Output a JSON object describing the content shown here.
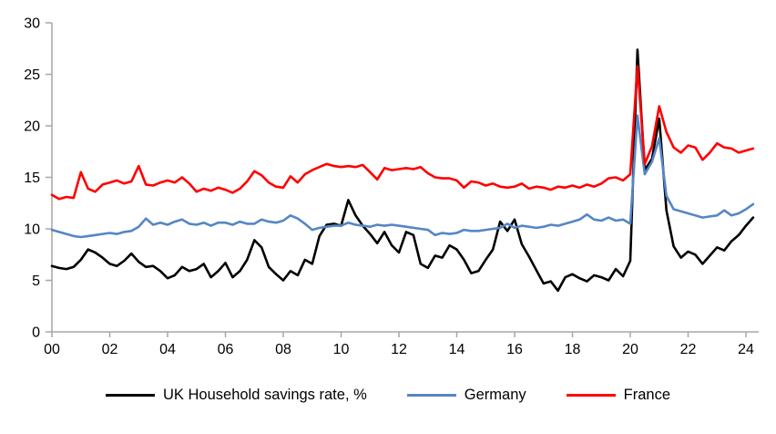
{
  "chart_data": {
    "type": "line",
    "title": "",
    "xlabel": "",
    "ylabel": "",
    "x_start_year": 2000,
    "points_per_year": 4,
    "x_frequency": "quarterly",
    "x_tick_labels": [
      "00",
      "02",
      "04",
      "06",
      "08",
      "10",
      "12",
      "14",
      "16",
      "18",
      "20",
      "22",
      "24"
    ],
    "x_tick_years": [
      2000,
      2002,
      2004,
      2006,
      2008,
      2010,
      2012,
      2014,
      2016,
      2018,
      2020,
      2022,
      2024
    ],
    "y_ticks": [
      0,
      5,
      10,
      15,
      20,
      25,
      30
    ],
    "ylim": [
      0,
      30
    ],
    "grid": false,
    "legend_position": "bottom",
    "axis_color": "#a6a6a6",
    "text_color": "#000000",
    "series": [
      {
        "name": "UK Household savings rate, %",
        "color": "#000000",
        "values": [
          6.4,
          6.2,
          6.1,
          6.3,
          7.0,
          8.0,
          7.7,
          7.2,
          6.6,
          6.4,
          6.9,
          7.6,
          6.8,
          6.3,
          6.4,
          5.9,
          5.2,
          5.5,
          6.3,
          5.9,
          6.1,
          6.6,
          5.3,
          5.9,
          6.7,
          5.3,
          5.9,
          7.0,
          8.9,
          8.2,
          6.3,
          5.6,
          5.0,
          5.9,
          5.5,
          7.0,
          6.6,
          9.3,
          10.4,
          10.5,
          10.3,
          12.8,
          11.3,
          10.3,
          9.5,
          8.6,
          9.7,
          8.4,
          7.7,
          9.7,
          9.4,
          6.6,
          6.2,
          7.4,
          7.2,
          8.4,
          8.0,
          7.0,
          5.7,
          5.9,
          7.0,
          8.0,
          10.7,
          9.8,
          10.9,
          8.5,
          7.3,
          6.0,
          4.7,
          4.9,
          4.0,
          5.3,
          5.6,
          5.2,
          4.9,
          5.5,
          5.3,
          5.0,
          6.1,
          5.4,
          6.9,
          27.4,
          15.7,
          16.8,
          20.7,
          11.8,
          8.3,
          7.2,
          7.8,
          7.5,
          6.6,
          7.4,
          8.2,
          7.9,
          8.8,
          9.4,
          10.3,
          11.1
        ]
      },
      {
        "name": "Germany",
        "color": "#5586c4",
        "values": [
          9.9,
          9.7,
          9.5,
          9.3,
          9.2,
          9.3,
          9.4,
          9.5,
          9.6,
          9.5,
          9.7,
          9.8,
          10.2,
          11.0,
          10.4,
          10.6,
          10.4,
          10.7,
          10.9,
          10.5,
          10.4,
          10.6,
          10.3,
          10.6,
          10.6,
          10.4,
          10.7,
          10.5,
          10.5,
          10.9,
          10.7,
          10.6,
          10.8,
          11.3,
          11.0,
          10.5,
          9.9,
          10.1,
          10.2,
          10.3,
          10.3,
          10.6,
          10.4,
          10.3,
          10.2,
          10.4,
          10.3,
          10.4,
          10.3,
          10.2,
          10.1,
          10.0,
          9.9,
          9.4,
          9.6,
          9.5,
          9.6,
          9.9,
          9.8,
          9.8,
          9.9,
          10.0,
          10.1,
          10.5,
          10.1,
          10.3,
          10.2,
          10.1,
          10.2,
          10.4,
          10.3,
          10.5,
          10.7,
          10.9,
          11.4,
          10.9,
          10.8,
          11.1,
          10.8,
          10.9,
          10.5,
          21.0,
          15.3,
          16.5,
          18.8,
          13.2,
          11.9,
          11.7,
          11.5,
          11.3,
          11.1,
          11.2,
          11.3,
          11.8,
          11.3,
          11.5,
          11.9,
          12.4
        ]
      },
      {
        "name": "France",
        "color": "#ff0000",
        "values": [
          13.3,
          12.9,
          13.1,
          13.0,
          15.5,
          13.9,
          13.6,
          14.3,
          14.5,
          14.7,
          14.4,
          14.6,
          16.1,
          14.3,
          14.2,
          14.5,
          14.7,
          14.5,
          15.0,
          14.4,
          13.6,
          13.9,
          13.7,
          14.0,
          13.8,
          13.5,
          13.9,
          14.6,
          15.6,
          15.2,
          14.5,
          14.1,
          14.0,
          15.1,
          14.5,
          15.3,
          15.7,
          16.0,
          16.3,
          16.1,
          16.0,
          16.1,
          16.0,
          16.2,
          15.5,
          14.8,
          15.9,
          15.7,
          15.8,
          15.9,
          15.8,
          16.0,
          15.4,
          15.0,
          14.9,
          14.9,
          14.7,
          14.0,
          14.6,
          14.5,
          14.2,
          14.4,
          14.1,
          14.0,
          14.1,
          14.4,
          13.9,
          14.1,
          14.0,
          13.8,
          14.1,
          14.0,
          14.2,
          14.0,
          14.3,
          14.1,
          14.4,
          14.9,
          15.0,
          14.7,
          15.3,
          25.8,
          16.3,
          18.0,
          21.9,
          19.4,
          17.9,
          17.4,
          18.1,
          17.9,
          16.7,
          17.4,
          18.3,
          17.9,
          17.8,
          17.4,
          17.6,
          17.8
        ]
      }
    ]
  }
}
